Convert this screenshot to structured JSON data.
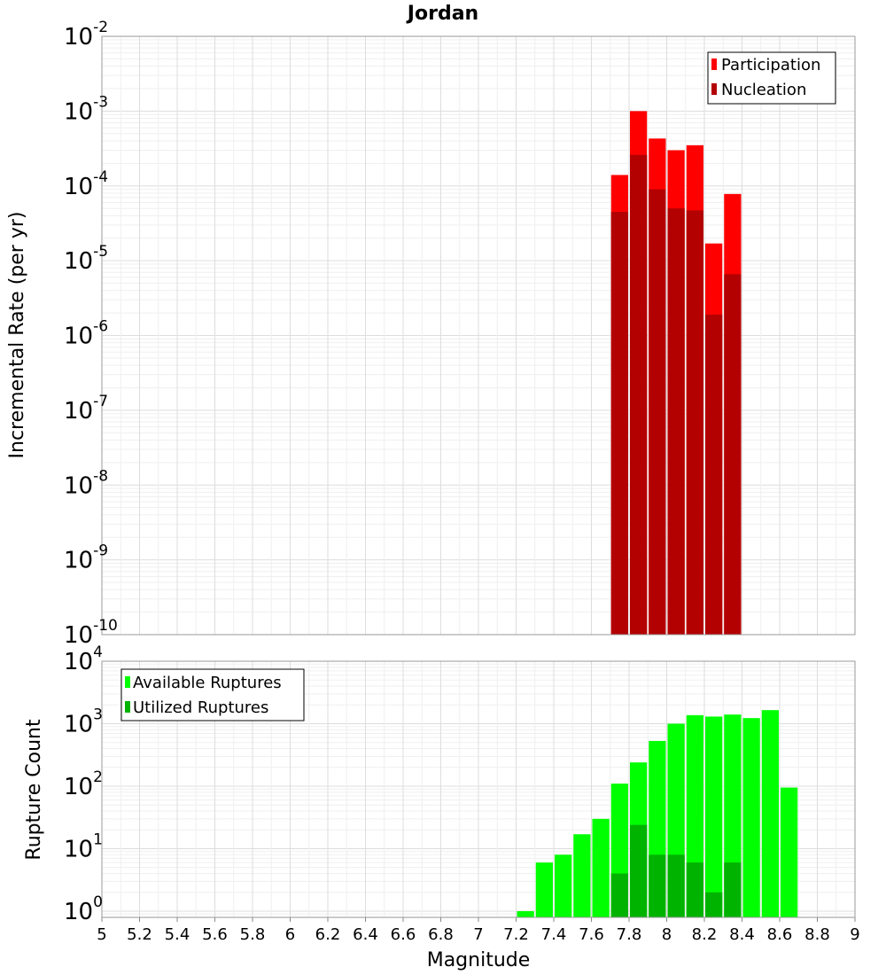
{
  "chart_data": [
    {
      "type": "bar",
      "title": "Jordan",
      "ylabel": "Incremental Rate (per yr)",
      "xlabel": "",
      "xlim": [
        5,
        9
      ],
      "ylim_log10": [
        -10,
        -2
      ],
      "yscale": "log",
      "bin_width": 0.1,
      "legend": {
        "placement": "top-right",
        "entries": [
          "Participation",
          "Nucleation"
        ]
      },
      "y_tick_exponents": [
        "-2",
        "-3",
        "-4",
        "-5",
        "-6",
        "-7",
        "-8",
        "-9",
        "-10"
      ],
      "series": [
        {
          "name": "Participation",
          "color": "#ff0000",
          "x": [
            7.75,
            7.85,
            7.95,
            8.05,
            8.15,
            8.25,
            8.35
          ],
          "values": [
            0.00014,
            0.001,
            0.00043,
            0.0003,
            0.00035,
            1.7e-05,
            7.8e-05
          ]
        },
        {
          "name": "Nucleation",
          "color": "#b30000",
          "x": [
            7.75,
            7.85,
            7.95,
            8.05,
            8.15,
            8.25,
            8.35
          ],
          "values": [
            4.5e-05,
            0.00026,
            9e-05,
            5e-05,
            4.7e-05,
            1.9e-06,
            6.6e-06
          ]
        }
      ]
    },
    {
      "type": "bar",
      "title": "",
      "ylabel": "Rupture Count",
      "xlabel": "Magnitude",
      "xlim": [
        5,
        9
      ],
      "ylim_log10": [
        -0.1,
        4
      ],
      "yscale": "log",
      "bin_width": 0.1,
      "legend": {
        "placement": "top-left",
        "entries": [
          "Available Ruptures",
          "Utilized Ruptures"
        ]
      },
      "x_ticks": [
        "5",
        "5.2",
        "5.4",
        "5.6",
        "5.8",
        "6",
        "6.2",
        "6.4",
        "6.6",
        "6.8",
        "7",
        "7.2",
        "7.4",
        "7.6",
        "7.8",
        "8",
        "8.2",
        "8.4",
        "8.6",
        "8.8",
        "9"
      ],
      "y_tick_exponents": [
        "4",
        "3",
        "2",
        "1",
        "0"
      ],
      "series": [
        {
          "name": "Available Ruptures",
          "color": "#00ff00",
          "x": [
            7.25,
            7.35,
            7.45,
            7.55,
            7.65,
            7.75,
            7.85,
            7.95,
            8.05,
            8.15,
            8.25,
            8.35,
            8.45,
            8.55,
            8.65
          ],
          "values": [
            1,
            6,
            8,
            17,
            30,
            110,
            240,
            530,
            1000,
            1370,
            1300,
            1400,
            1230,
            1650,
            95
          ]
        },
        {
          "name": "Utilized Ruptures",
          "color": "#00b300",
          "x": [
            7.75,
            7.85,
            7.95,
            8.05,
            8.15,
            8.25,
            8.35
          ],
          "values": [
            4,
            24,
            8,
            8,
            6,
            2,
            6
          ]
        }
      ]
    }
  ]
}
